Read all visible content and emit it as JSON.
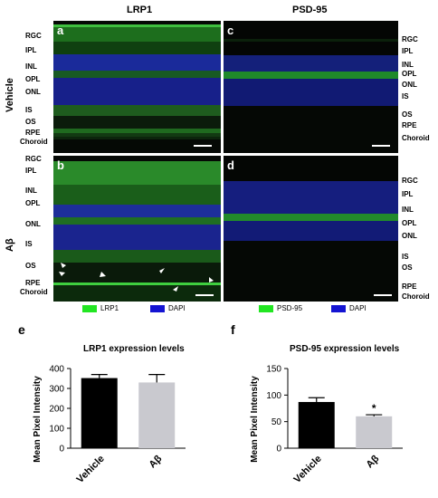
{
  "columns": {
    "left": "LRP1",
    "right": "PSD-95"
  },
  "rows": {
    "top": "Vehicle",
    "bottom": "Aβ"
  },
  "panel_letters": {
    "a": "a",
    "b": "b",
    "c": "c",
    "d": "d"
  },
  "layers": {
    "a": [
      "RGC",
      "IPL",
      "INL",
      "OPL",
      "ONL",
      "IS",
      "OS",
      "RPE",
      "Choroid"
    ],
    "b": [
      "RGC",
      "IPL",
      "INL",
      "OPL",
      "ONL",
      "IS",
      "OS",
      "RPE",
      "Choroid"
    ],
    "c": [
      "RGC",
      "IPL",
      "INL",
      "OPL",
      "ONL",
      "IS",
      "OS",
      "RPE",
      "Choroid"
    ],
    "d": [
      "RGC",
      "IPL",
      "INL",
      "OPL",
      "ONL",
      "IS",
      "OS",
      "RPE",
      "Choroid"
    ]
  },
  "legend": {
    "left": [
      {
        "label": "LRP1",
        "color": "#22e622"
      },
      {
        "label": "DAPI",
        "color": "#1414d2"
      }
    ],
    "right": [
      {
        "label": "PSD-95",
        "color": "#22e622"
      },
      {
        "label": "DAPI",
        "color": "#1414d2"
      }
    ]
  },
  "colors": {
    "stain_green": "#2ecc2e",
    "nucleus_blue": "#1e1ea8",
    "bar_vehicle": "#000000",
    "bar_abeta": "#c9c9cf"
  },
  "chart_data": [
    {
      "type": "bar",
      "letter": "e",
      "title": "LRP1 expression levels",
      "ylabel": "Mean Pixel  Intensity",
      "categories": [
        "Vehicle",
        "Aβ"
      ],
      "values": [
        352,
        330
      ],
      "errors": [
        18,
        40
      ],
      "colors": [
        "#000000",
        "#c9c9cf"
      ],
      "ylim": [
        0,
        400
      ],
      "yticks": [
        "0",
        "100",
        "200",
        "300",
        "400"
      ],
      "annotations": []
    },
    {
      "type": "bar",
      "letter": "f",
      "title": "PSD-95 expression levels",
      "ylabel": "Mean Pixel  Intensity",
      "categories": [
        "Vehicle",
        "Aβ"
      ],
      "values": [
        87,
        60
      ],
      "errors": [
        8,
        3
      ],
      "colors": [
        "#000000",
        "#c9c9cf"
      ],
      "ylim": [
        0,
        150
      ],
      "yticks": [
        "0",
        "50",
        "100",
        "150"
      ],
      "annotations": [
        "*"
      ]
    }
  ]
}
